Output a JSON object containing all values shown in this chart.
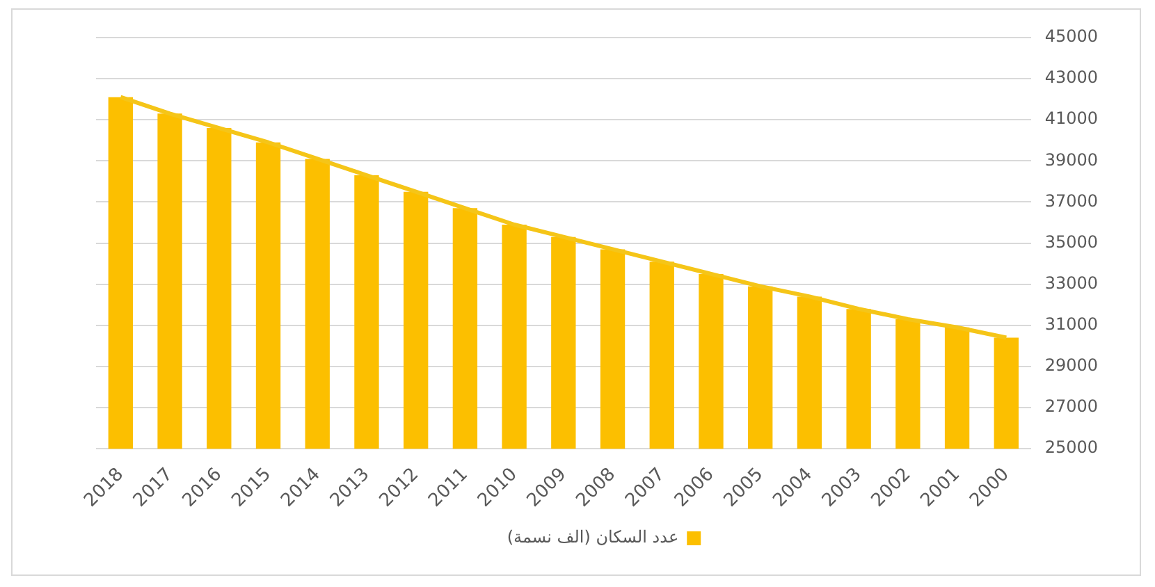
{
  "chart_data": {
    "type": "bar",
    "categories": [
      "2018",
      "2017",
      "2016",
      "2015",
      "2014",
      "2013",
      "2012",
      "2011",
      "2010",
      "2009",
      "2008",
      "2007",
      "2006",
      "2005",
      "2004",
      "2003",
      "2002",
      "2001",
      "2000"
    ],
    "series": [
      {
        "name": "عدد السكان (الف نسمة)",
        "color": "#fcbf00",
        "values": [
          42100,
          41300,
          40600,
          39900,
          39100,
          38300,
          37500,
          36700,
          35900,
          35300,
          34700,
          34100,
          33500,
          32900,
          32400,
          31800,
          31300,
          30900,
          30400
        ]
      },
      {
        "type": "line",
        "color": "#f5c518",
        "values": [
          42100,
          41300,
          40600,
          39900,
          39100,
          38300,
          37500,
          36700,
          35900,
          35300,
          34700,
          34100,
          33500,
          32900,
          32400,
          31800,
          31300,
          30900,
          30400
        ]
      }
    ],
    "ylim": [
      25000,
      45000
    ],
    "yticks": [
      25000,
      27000,
      29000,
      31000,
      33000,
      35000,
      37000,
      39000,
      41000,
      43000,
      45000
    ],
    "grid": "y",
    "legend": "bottom",
    "marker": "none"
  }
}
